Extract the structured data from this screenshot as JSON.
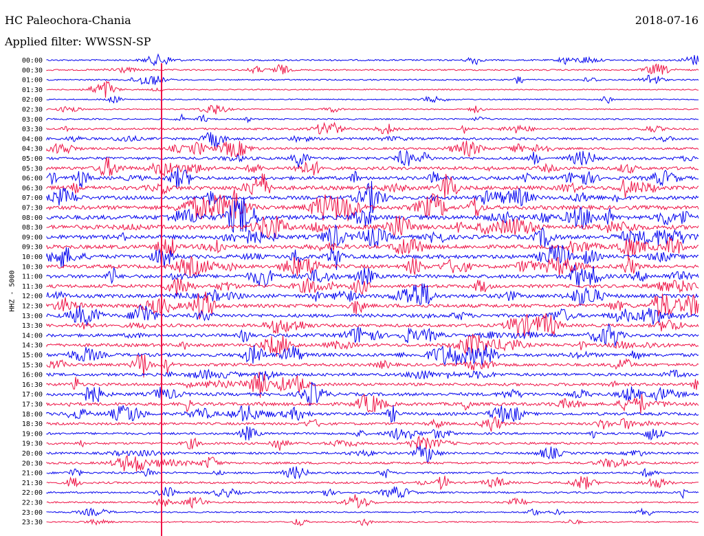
{
  "header": {
    "station": "HC Paleochora-Chania",
    "date": "2018-07-16",
    "filter": "Applied filter: WWSSN-SP"
  },
  "chart_data": {
    "type": "line",
    "ylabel": "HHZ - 5000",
    "times": [
      "00:00",
      "00:30",
      "01:00",
      "01:30",
      "02:00",
      "02:30",
      "03:00",
      "03:30",
      "04:00",
      "04:30",
      "05:00",
      "05:30",
      "06:00",
      "06:30",
      "07:00",
      "07:30",
      "08:00",
      "08:30",
      "09:00",
      "09:30",
      "10:00",
      "10:30",
      "11:00",
      "11:30",
      "12:00",
      "12:30",
      "13:00",
      "13:30",
      "14:00",
      "14:30",
      "15:00",
      "15:30",
      "16:00",
      "16:30",
      "17:00",
      "17:30",
      "18:00",
      "18:30",
      "19:00",
      "19:30",
      "20:00",
      "20:30",
      "21:00",
      "21:30",
      "22:00",
      "22:30",
      "23:00",
      "23:30"
    ],
    "noise_level": [
      0.15,
      0.12,
      0.1,
      0.05,
      0.06,
      0.08,
      0.12,
      0.25,
      0.35,
      0.3,
      0.4,
      0.5,
      0.55,
      0.65,
      0.6,
      0.7,
      0.75,
      0.75,
      0.7,
      0.65,
      0.65,
      0.6,
      0.6,
      0.55,
      0.6,
      0.6,
      0.55,
      0.5,
      0.5,
      0.5,
      0.55,
      0.45,
      0.45,
      0.45,
      0.5,
      0.5,
      0.45,
      0.35,
      0.3,
      0.3,
      0.3,
      0.3,
      0.25,
      0.25,
      0.2,
      0.15,
      0.12,
      0.1
    ],
    "colors": {
      "even": "#0000ee",
      "odd": "#ee1144"
    }
  }
}
